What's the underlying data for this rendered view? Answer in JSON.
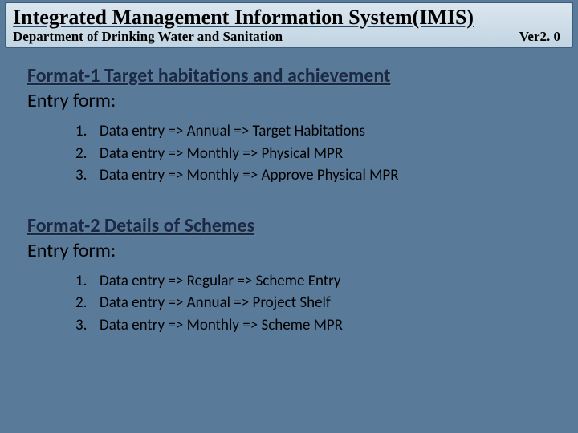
{
  "header": {
    "title": "Integrated Management Information System(IMIS)",
    "subtitle": "Department of Drinking Water and Sanitation",
    "version": "Ver2. 0"
  },
  "sections": [
    {
      "heading": "Format-1 Target habitations and achievement",
      "entry_label": "Entry form:",
      "items": [
        {
          "num": "1.",
          "text": "Data entry => Annual =>  Target Habitations"
        },
        {
          "num": "2.",
          "text": "Data entry => Monthly => Physical MPR"
        },
        {
          "num": "3.",
          "text": "Data entry => Monthly => Approve Physical MPR"
        }
      ]
    },
    {
      "heading": "Format-2 Details of Schemes",
      "entry_label": "Entry form:",
      "items": [
        {
          "num": "1.",
          "text": "Data entry => Regular =>  Scheme Entry"
        },
        {
          "num": "2.",
          "text": "Data entry => Annual => Project Shelf"
        },
        {
          "num": "3.",
          "text": "Data entry => Monthly => Scheme MPR"
        }
      ]
    }
  ],
  "colors": {
    "slide_bg": "#5a7a9a",
    "header_border": "#3b5e7e",
    "heading_color": "#1a2a45"
  }
}
